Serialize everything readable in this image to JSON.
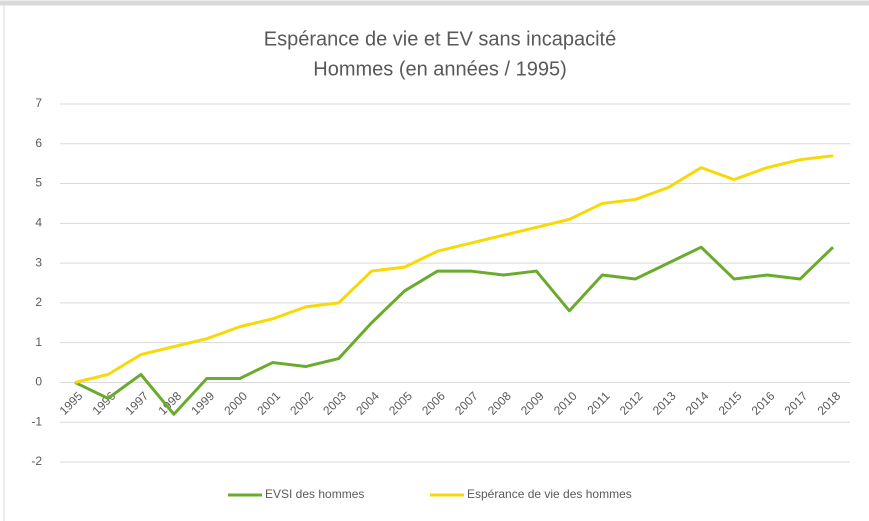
{
  "chart_data": {
    "type": "line",
    "title": "Espérance de vie et EV sans incapacité",
    "subtitle": "Hommes (en années / 1995)",
    "categories": [
      "1995",
      "1996",
      "1997",
      "1998",
      "1999",
      "2000",
      "2001",
      "2002",
      "2003",
      "2004",
      "2005",
      "2006",
      "2007",
      "2008",
      "2009",
      "2010",
      "2011",
      "2012",
      "2013",
      "2014",
      "2015",
      "2016",
      "2017",
      "2018"
    ],
    "series": [
      {
        "name": "EVSI des hommes",
        "color": "#6aab2e",
        "values": [
          0,
          -0.4,
          0.2,
          -0.8,
          0.1,
          0.1,
          0.5,
          0.4,
          0.6,
          1.5,
          2.3,
          2.8,
          2.8,
          2.7,
          2.8,
          1.8,
          2.7,
          2.6,
          3.0,
          3.4,
          2.6,
          2.7,
          2.6,
          3.4
        ]
      },
      {
        "name": "Espérance de vie des hommes",
        "color": "#f7d90a",
        "values": [
          0,
          0.2,
          0.7,
          0.9,
          1.1,
          1.4,
          1.6,
          1.9,
          2.0,
          2.8,
          2.9,
          3.3,
          3.5,
          3.7,
          3.9,
          4.1,
          4.5,
          4.6,
          4.9,
          5.4,
          5.1,
          5.4,
          5.6,
          5.7
        ]
      }
    ],
    "ylim": [
      -2,
      7
    ],
    "yticks": [
      -2,
      -1,
      0,
      1,
      2,
      3,
      4,
      5,
      6,
      7
    ],
    "grid": true,
    "legend": "bottom"
  }
}
